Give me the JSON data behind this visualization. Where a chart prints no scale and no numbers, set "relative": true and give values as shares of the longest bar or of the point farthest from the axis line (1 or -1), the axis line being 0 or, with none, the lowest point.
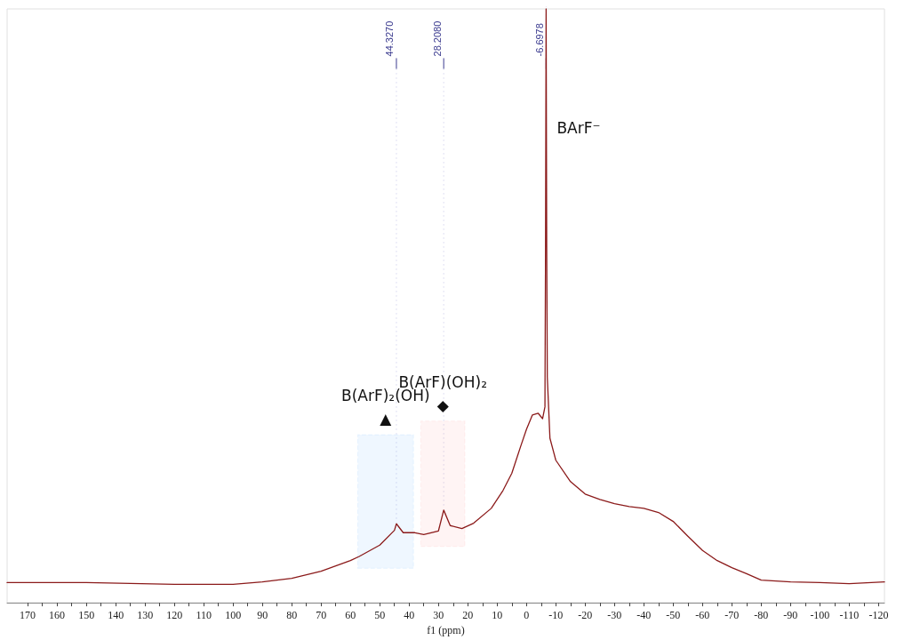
{
  "chart_data": {
    "type": "line",
    "xlabel": "f1 (ppm)",
    "relative": true,
    "color": "#8b1a1a",
    "grid": false,
    "marker": "none",
    "xlim": [
      177,
      -122
    ],
    "xticks": [
      170,
      {
        "value": 165,
        "label": null
      },
      160,
      {
        "value": 155,
        "label": null
      },
      150,
      {
        "value": 145,
        "label": null
      },
      140,
      {
        "value": 135,
        "label": null
      },
      130,
      {
        "value": 125,
        "label": null
      },
      120,
      {
        "value": 115,
        "label": null
      },
      110,
      {
        "value": 105,
        "label": null
      },
      100,
      {
        "value": 95,
        "label": null
      },
      90,
      {
        "value": 85,
        "label": null
      },
      80,
      {
        "value": 75,
        "label": null
      },
      70,
      {
        "value": 65,
        "label": null
      },
      60,
      {
        "value": 55,
        "label": null
      },
      50,
      {
        "value": 45,
        "label": null
      },
      40,
      {
        "value": 35,
        "label": null
      },
      30,
      {
        "value": 25,
        "label": null
      },
      20,
      {
        "value": 15,
        "label": null
      },
      10,
      {
        "value": 5,
        "label": null
      },
      0,
      {
        "value": -5,
        "label": null
      },
      -10,
      {
        "value": -15,
        "label": null
      },
      -20,
      {
        "value": -25,
        "label": null
      },
      -30,
      {
        "value": -35,
        "label": null
      },
      -40,
      {
        "value": -45,
        "label": null
      },
      -50,
      {
        "value": -55,
        "label": null
      },
      -60,
      {
        "value": -65,
        "label": null
      },
      -70,
      {
        "value": -75,
        "label": null
      },
      -80,
      {
        "value": -85,
        "label": null
      },
      -90,
      {
        "value": -95,
        "label": null
      },
      -100,
      {
        "value": -105,
        "label": null
      },
      -110,
      {
        "value": -115,
        "label": null
      },
      -120
    ],
    "x": [
      177,
      150,
      120,
      100,
      90,
      80,
      70,
      60,
      57,
      50,
      45,
      44.327,
      42,
      38,
      35,
      30,
      28.208,
      26,
      22,
      18,
      12,
      8,
      5,
      2,
      0,
      -2,
      -4,
      -5.5,
      -6.3,
      -6.5,
      -6.6978,
      -6.9,
      -7.1,
      -8,
      -10,
      -15,
      -20,
      -25,
      -30,
      -35,
      -40,
      -45,
      -50,
      -55,
      -60,
      -65,
      -70,
      -75,
      -80,
      -90,
      -100,
      -110,
      -122
    ],
    "values": [
      0.034,
      0.034,
      0.031,
      0.031,
      0.035,
      0.041,
      0.053,
      0.071,
      0.078,
      0.097,
      0.122,
      0.133,
      0.118,
      0.118,
      0.115,
      0.121,
      0.156,
      0.13,
      0.125,
      0.134,
      0.159,
      0.189,
      0.218,
      0.263,
      0.292,
      0.316,
      0.319,
      0.31,
      0.33,
      0.6,
      1,
      0.6,
      0.38,
      0.277,
      0.24,
      0.204,
      0.183,
      0.174,
      0.167,
      0.162,
      0.159,
      0.152,
      0.137,
      0.112,
      0.088,
      0.071,
      0.059,
      0.049,
      0.038,
      0.035,
      0.034,
      0.032,
      0.035
    ],
    "bands": [
      {
        "axis": "x",
        "from": 57.5,
        "to": 38.5,
        "label": "B(ArF)₂(OH)\n▲",
        "color": "#3399ff"
      },
      {
        "axis": "x",
        "from": 36,
        "to": 21,
        "label": "B(ArF)(OH)₂\n◆",
        "color": "#ff6f6f"
      }
    ],
    "annotations": [
      {
        "text": "44.3270",
        "x": 44.327,
        "y": 0.133
      },
      {
        "text": "28.2080",
        "x": 28.208,
        "y": 0.156
      },
      {
        "text": "-6.6978",
        "x": -6.6978,
        "y": 1
      },
      {
        "text": "BArF⁻",
        "x": -6.6978,
        "y": 0.8
      }
    ]
  }
}
